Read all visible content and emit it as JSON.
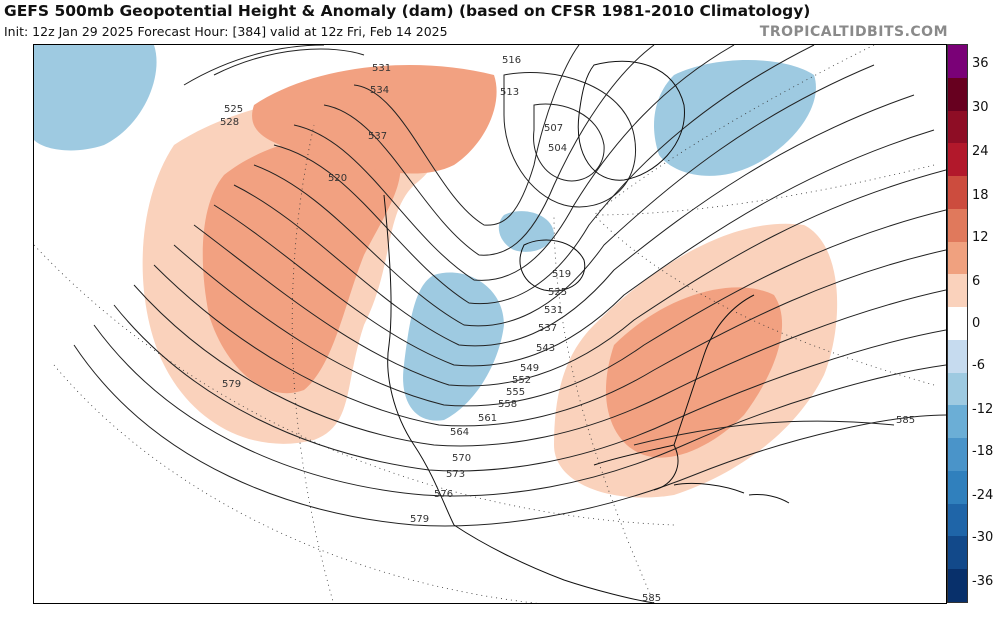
{
  "header": {
    "title": "GEFS 500mb Geopotential Height & Anomaly (dam) (based on CFSR 1981-2010 Climatology)",
    "subtitle": "Init: 12z Jan 29 2025   Forecast Hour: [384]   valid at 12z Fri, Feb 14 2025",
    "brand": "TROPICALTIDBITS.COM"
  },
  "colorbar": {
    "labels": [
      "36",
      "30",
      "24",
      "18",
      "12",
      "6",
      "0",
      "-6",
      "-12",
      "-18",
      "-24",
      "-30",
      "-36"
    ],
    "colors": [
      "#7a0177",
      "#67001f",
      "#8e0d25",
      "#b2182b",
      "#cc4c3e",
      "#e0795c",
      "#f0a17f",
      "#fad2bc",
      "#ffffff",
      "#c6dbef",
      "#9ecae1",
      "#6baed6",
      "#4a94c9",
      "#3080bd",
      "#1f65a8",
      "#12498a",
      "#08306b"
    ]
  },
  "contours": {
    "labels": [
      "531",
      "516",
      "534",
      "525",
      "528",
      "537",
      "513",
      "507",
      "504",
      "520",
      "519",
      "525",
      "531",
      "537",
      "543",
      "549",
      "552",
      "555",
      "558",
      "561",
      "564",
      "570",
      "573",
      "576",
      "579",
      "579",
      "585",
      "585"
    ]
  },
  "colors": {
    "warm": "#f2a181",
    "warm_light": "#fad2bc",
    "cold": "#9ecae1",
    "cold_light": "#c6dbef",
    "contour": "#222222",
    "land": "#222222"
  }
}
